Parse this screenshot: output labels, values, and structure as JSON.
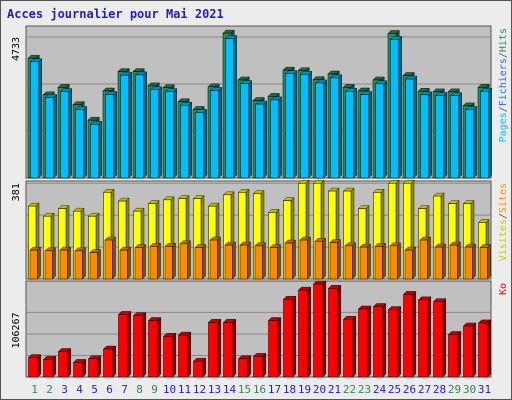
{
  "title": "Acces journalier pour Mai 2021",
  "colors": {
    "background": "#ececec",
    "plot_bg": "#c0c0c0",
    "title": "#1f1fc6",
    "pages": "#00bfff",
    "hits": "#2e8b57",
    "visites": "#ffff00",
    "sites": "#ff8c00",
    "ko": "#ff0000",
    "weekend_label": "#2e8b57",
    "weekday_label": "#1f1fc6"
  },
  "chart_data": [
    {
      "type": "bar",
      "panel": "hits-pages",
      "categories": [
        "1",
        "2",
        "3",
        "4",
        "5",
        "6",
        "7",
        "8",
        "9",
        "10",
        "11",
        "12",
        "13",
        "14",
        "15",
        "16",
        "17",
        "18",
        "19",
        "20",
        "21",
        "22",
        "23",
        "24",
        "25",
        "26",
        "27",
        "28",
        "29",
        "30",
        "31"
      ],
      "weekend_days": [
        "1",
        "2",
        "8",
        "9",
        "15",
        "16",
        "22",
        "23",
        "29",
        "30"
      ],
      "y_tick_label": "4733",
      "y_tick_value": 4733,
      "ylim": [
        0,
        5100
      ],
      "legend": [
        {
          "text": "Pages",
          "color": "#00bfff"
        },
        {
          "text": "/",
          "color": "#555555"
        },
        {
          "text": "Fichiers",
          "color": "#1f6fd6"
        },
        {
          "text": "/",
          "color": "#555555"
        },
        {
          "text": "Hits",
          "color": "#2e8b57"
        }
      ],
      "series": [
        {
          "name": "Hits",
          "values": [
            4020,
            2790,
            3040,
            2460,
            1940,
            2920,
            3570,
            3570,
            3090,
            3030,
            2560,
            2300,
            3060,
            4860,
            3290,
            2600,
            2740,
            3620,
            3600,
            3300,
            3490,
            3040,
            2920,
            3290,
            4850,
            3440,
            2910,
            2890,
            2890,
            2420,
            3040
          ]
        },
        {
          "name": "Pages",
          "values": [
            3900,
            2700,
            2900,
            2300,
            1800,
            2800,
            3450,
            3460,
            2960,
            2900,
            2440,
            2200,
            2940,
            4680,
            3170,
            2480,
            2620,
            3500,
            3480,
            3190,
            3360,
            2910,
            2800,
            3160,
            4650,
            3320,
            2790,
            2770,
            2760,
            2300,
            2910
          ]
        }
      ]
    },
    {
      "type": "bar",
      "panel": "visites-sites",
      "categories": [
        "1",
        "2",
        "3",
        "4",
        "5",
        "6",
        "7",
        "8",
        "9",
        "10",
        "11",
        "12",
        "13",
        "14",
        "15",
        "16",
        "17",
        "18",
        "19",
        "20",
        "21",
        "22",
        "23",
        "24",
        "25",
        "26",
        "27",
        "28",
        "29",
        "30",
        "31"
      ],
      "y_tick_label": "381",
      "y_tick_value": 381,
      "ylim": [
        0,
        390
      ],
      "legend": [
        {
          "text": "Visites",
          "color": "#c8c800"
        },
        {
          "text": "/",
          "color": "#555555"
        },
        {
          "text": "Sites",
          "color": "#ff8c00"
        }
      ],
      "series": [
        {
          "name": "Visites",
          "values": [
            290,
            250,
            280,
            270,
            250,
            345,
            310,
            270,
            300,
            315,
            320,
            320,
            290,
            335,
            345,
            340,
            265,
            312,
            381,
            381,
            350,
            350,
            280,
            345,
            381,
            381,
            280,
            330,
            300,
            300,
            225
          ]
        },
        {
          "name": "Sites",
          "values": [
            115,
            112,
            115,
            112,
            105,
            155,
            115,
            125,
            130,
            130,
            140,
            125,
            155,
            135,
            135,
            132,
            125,
            143,
            155,
            150,
            145,
            132,
            127,
            130,
            132,
            115,
            155,
            127,
            135,
            127,
            125
          ]
        }
      ]
    },
    {
      "type": "bar",
      "panel": "ko",
      "categories": [
        "1",
        "2",
        "3",
        "4",
        "5",
        "6",
        "7",
        "8",
        "9",
        "10",
        "11",
        "12",
        "13",
        "14",
        "15",
        "16",
        "17",
        "18",
        "19",
        "20",
        "21",
        "22",
        "23",
        "24",
        "25",
        "26",
        "27",
        "28",
        "29",
        "30",
        "31"
      ],
      "y_tick_label": "106267",
      "y_tick_value": 106267,
      "ylim": [
        0,
        158000
      ],
      "legend": [
        {
          "text": "Ko",
          "color": "#ff0000"
        }
      ],
      "series": [
        {
          "name": "Ko",
          "values": [
            32000,
            29000,
            42000,
            24000,
            30000,
            46000,
            103000,
            101000,
            93000,
            67000,
            69000,
            26000,
            90000,
            90000,
            30000,
            34000,
            93000,
            128000,
            143000,
            153000,
            146000,
            95000,
            112000,
            116000,
            111000,
            136000,
            127000,
            124000,
            70000,
            84000,
            89000
          ]
        }
      ]
    }
  ]
}
